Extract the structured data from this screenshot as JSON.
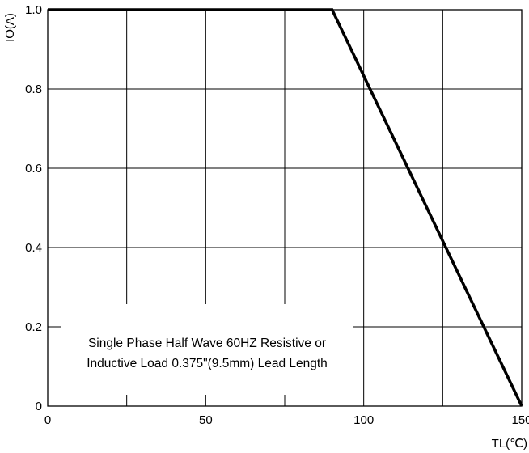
{
  "chart_data": {
    "type": "line",
    "xlabel": "TL(℃)",
    "ylabel": "IO(A)",
    "xlim": [
      0,
      150
    ],
    "ylim": [
      0,
      1.0
    ],
    "x_ticks": [
      "0",
      "50",
      "100",
      "150"
    ],
    "y_ticks": [
      "0",
      "0.2",
      "0.4",
      "0.6",
      "0.8",
      "1.0"
    ],
    "grid": true,
    "series": [
      {
        "x": [
          0,
          90,
          150
        ],
        "values": [
          1.0,
          1.0,
          0
        ]
      }
    ],
    "annotation": [
      "Single Phase Half Wave  60HZ Resistive or",
      "Inductive Load 0.375\"(9.5mm) Lead Length"
    ]
  }
}
